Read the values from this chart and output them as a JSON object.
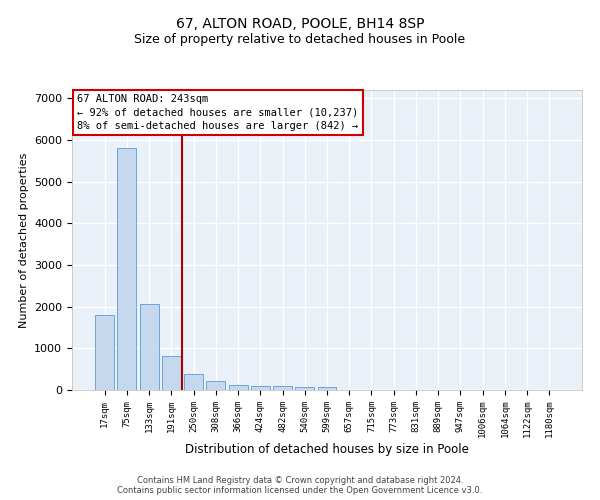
{
  "title": "67, ALTON ROAD, POOLE, BH14 8SP",
  "subtitle": "Size of property relative to detached houses in Poole",
  "xlabel": "Distribution of detached houses by size in Poole",
  "ylabel": "Number of detached properties",
  "categories": [
    "17sqm",
    "75sqm",
    "133sqm",
    "191sqm",
    "250sqm",
    "308sqm",
    "366sqm",
    "424sqm",
    "482sqm",
    "540sqm",
    "599sqm",
    "657sqm",
    "715sqm",
    "773sqm",
    "831sqm",
    "889sqm",
    "947sqm",
    "1006sqm",
    "1064sqm",
    "1122sqm",
    "1180sqm"
  ],
  "values": [
    1800,
    5800,
    2060,
    810,
    380,
    205,
    120,
    105,
    100,
    80,
    80,
    0,
    0,
    0,
    0,
    0,
    0,
    0,
    0,
    0,
    0
  ],
  "bar_color": "#c5d8ed",
  "bar_edge_color": "#5b9bd5",
  "vline_x_index": 4,
  "vline_color": "#aa0000",
  "annotation_line1": "67 ALTON ROAD: 243sqm",
  "annotation_line2": "← 92% of detached houses are smaller (10,237)",
  "annotation_line3": "8% of semi-detached houses are larger (842) →",
  "annotation_box_edgecolor": "#cc0000",
  "background_color": "#eaf0f8",
  "grid_color": "#ffffff",
  "ylim": [
    0,
    7200
  ],
  "yticks": [
    0,
    1000,
    2000,
    3000,
    4000,
    5000,
    6000,
    7000
  ],
  "footnote_line1": "Contains HM Land Registry data © Crown copyright and database right 2024.",
  "footnote_line2": "Contains public sector information licensed under the Open Government Licence v3.0.",
  "title_fontsize": 10,
  "subtitle_fontsize": 9,
  "ylabel_fontsize": 8,
  "xlabel_fontsize": 8.5,
  "tick_fontsize": 6.5,
  "ytick_fontsize": 8,
  "annot_fontsize": 7.5,
  "footnote_fontsize": 6
}
